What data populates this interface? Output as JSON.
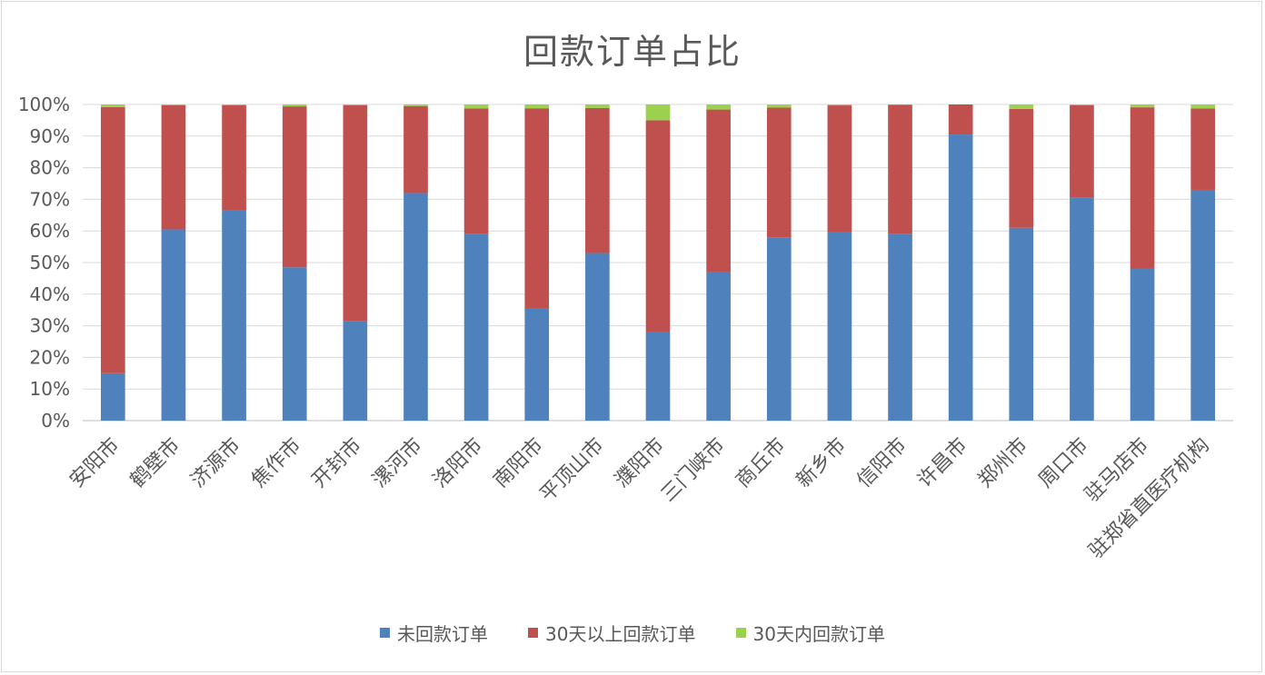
{
  "chart_data": {
    "type": "bar",
    "stacked": true,
    "normalized_percent": true,
    "title": "回款订单占比",
    "xlabel": "",
    "ylabel": "",
    "ylim": [
      0,
      100
    ],
    "yticks": [
      "0%",
      "10%",
      "20%",
      "30%",
      "40%",
      "50%",
      "60%",
      "70%",
      "80%",
      "90%",
      "100%"
    ],
    "grid": true,
    "legend_position": "bottom",
    "categories": [
      "安阳市",
      "鹤壁市",
      "济源市",
      "焦作市",
      "开封市",
      "漯河市",
      "洛阳市",
      "南阳市",
      "平顶山市",
      "濮阳市",
      "三门峡市",
      "商丘市",
      "新乡市",
      "信阳市",
      "许昌市",
      "郑州市",
      "周口市",
      "驻马店市",
      "驻郑省直医疗机构"
    ],
    "series": [
      {
        "name": "未回款订单",
        "color": "#4f81bd",
        "values": [
          15,
          60.5,
          66.5,
          48.5,
          31.5,
          72,
          59,
          35.5,
          53,
          28,
          47,
          58,
          59.5,
          59,
          90.5,
          61,
          70.5,
          48,
          73
        ]
      },
      {
        "name": "30天以上回款订单",
        "color": "#c0504d",
        "values": [
          84.2,
          39.3,
          33.3,
          50.9,
          68.3,
          27.5,
          39.7,
          63.3,
          45.9,
          67,
          51.4,
          41,
          40.2,
          40.9,
          9.5,
          37.6,
          29.3,
          51.1,
          25.7
        ]
      },
      {
        "name": "30天内回款订单",
        "color": "#9bd14f",
        "values": [
          0.8,
          0.2,
          0.2,
          0.6,
          0.2,
          0.5,
          1.3,
          1.2,
          1.1,
          5,
          1.6,
          1,
          0.3,
          0.1,
          0,
          1.4,
          0.2,
          0.9,
          1.3
        ]
      }
    ]
  }
}
